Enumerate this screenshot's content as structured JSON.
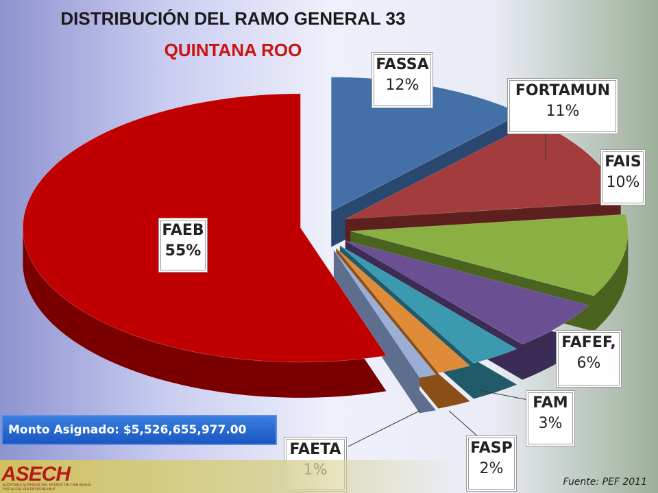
{
  "header": {
    "title": "DISTRIBUCIÓN DEL RAMO GENERAL 33",
    "subtitle": "QUINTANA ROO"
  },
  "chart_data": {
    "type": "pie",
    "style": "3d-exploded",
    "title": "DISTRIBUCIÓN DEL RAMO GENERAL 33",
    "subtitle": "QUINTANA ROO",
    "slices": [
      {
        "name": "FAEB",
        "label": "55%",
        "value": 55,
        "color": "#c00000",
        "side": "#7a0000"
      },
      {
        "name": "FASSA",
        "label": "12%",
        "value": 12,
        "color": "#4470a8",
        "side": "#2a4770"
      },
      {
        "name": "FORTAMUN",
        "label": "11%",
        "value": 11,
        "color": "#a33c3c",
        "side": "#5e1f1f"
      },
      {
        "name": "FAIS",
        "label": "10%",
        "value": 10,
        "color": "#8ab043",
        "side": "#4a6420"
      },
      {
        "name": "FAFEF,",
        "label": "6%",
        "value": 6,
        "color": "#6a4f92",
        "side": "#3b2c55"
      },
      {
        "name": "FAM",
        "label": "3%",
        "value": 3,
        "color": "#3b9ab0",
        "side": "#215a68"
      },
      {
        "name": "FASP",
        "label": "2%",
        "value": 2,
        "color": "#e08b38",
        "side": "#8a4e18"
      },
      {
        "name": "FAETA",
        "label": "1%",
        "value": 1,
        "color": "#9aaed6",
        "side": "#5d6e8e"
      }
    ],
    "legend": "none",
    "data_labels": "callout-boxes"
  },
  "monto": "Monto Asignado: $5,526,655,977.00",
  "logo": {
    "text": "ASECH",
    "subtext": "AUDITORÍA SUPERIOR DEL ESTADO DE CHIHUAHUA · FISCALIZACIÓN RESPONSABLE"
  },
  "source": "Fuente: PEF 2011"
}
